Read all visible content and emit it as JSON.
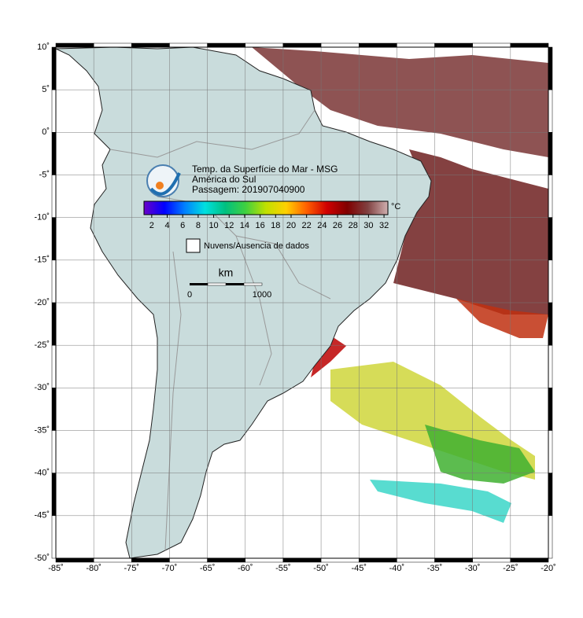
{
  "map": {
    "xlim": [
      -85,
      -20
    ],
    "ylim": [
      -50,
      10
    ],
    "xticks": [
      {
        "value": -85,
        "label": "-85˚"
      },
      {
        "value": -80,
        "label": "-80˚"
      },
      {
        "value": -75,
        "label": "-75˚"
      },
      {
        "value": -70,
        "label": "-70˚"
      },
      {
        "value": -65,
        "label": "-65˚"
      },
      {
        "value": -60,
        "label": "-60˚"
      },
      {
        "value": -55,
        "label": "-55˚"
      },
      {
        "value": -50,
        "label": "-50˚"
      },
      {
        "value": -45,
        "label": "-45˚"
      },
      {
        "value": -40,
        "label": "-40˚"
      },
      {
        "value": -35,
        "label": "-35˚"
      },
      {
        "value": -30,
        "label": "-30˚"
      },
      {
        "value": -25,
        "label": "-25˚"
      },
      {
        "value": -20,
        "label": "-20˚"
      }
    ],
    "yticks": [
      {
        "value": 10,
        "label": "10˚"
      },
      {
        "value": 5,
        "label": "5˚"
      },
      {
        "value": 0,
        "label": "0˚"
      },
      {
        "value": -5,
        "label": "-5˚"
      },
      {
        "value": -10,
        "label": "-10˚"
      },
      {
        "value": -15,
        "label": "-15˚"
      },
      {
        "value": -20,
        "label": "-20˚"
      },
      {
        "value": -25,
        "label": "-25˚"
      },
      {
        "value": -30,
        "label": "-30˚"
      },
      {
        "value": -35,
        "label": "-35˚"
      },
      {
        "value": -40,
        "label": "-40˚"
      },
      {
        "value": -45,
        "label": "-45˚"
      },
      {
        "value": -50,
        "label": "-50˚"
      }
    ],
    "grid": true,
    "title_lines": [
      "Temp. da Superfície do Mar - MSG",
      "América do Sul",
      "Passagem: 201907040900"
    ],
    "colorbar": {
      "lim": [
        1,
        32.5
      ],
      "ticks": [
        2,
        4,
        6,
        8,
        10,
        12,
        14,
        16,
        18,
        20,
        22,
        24,
        26,
        28,
        30,
        32
      ],
      "unit": "°C",
      "colors": [
        "#6a00c8",
        "#0000ff",
        "#0080ff",
        "#00e0e0",
        "#00c080",
        "#40d040",
        "#c0e000",
        "#ffd000",
        "#ff6000",
        "#d00000",
        "#800000",
        "#804040",
        "#d0b0b0"
      ]
    },
    "legend": "Nuvens/Ausencia de dados",
    "scale": {
      "unit": "km",
      "labels": [
        "0",
        "1000"
      ]
    }
  }
}
